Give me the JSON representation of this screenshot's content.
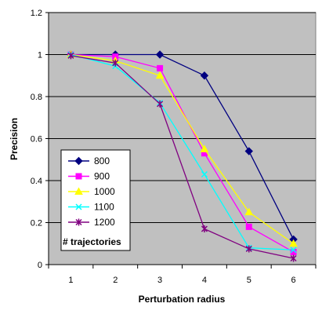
{
  "chart_data": {
    "type": "line",
    "xlabel": "Perturbation radius",
    "ylabel": "Precision",
    "x": [
      1,
      2,
      3,
      4,
      5,
      6
    ],
    "x_ticks": [
      "1",
      "2",
      "3",
      "4",
      "5",
      "6"
    ],
    "xlim": [
      0.5,
      6.5
    ],
    "ylim": [
      0,
      1.2
    ],
    "y_ticks": [
      "0",
      "0.2",
      "0.4",
      "0.6",
      "0.8",
      "1",
      "1.2"
    ],
    "grid": true,
    "plot_background": "#c0c0c0",
    "legend_title": "# trajectories",
    "legend_placement": "left",
    "series": [
      {
        "name": "800",
        "color": "#000080",
        "marker": "diamond",
        "values": [
          1.0,
          1.0,
          1.0,
          0.9,
          0.54,
          0.12
        ]
      },
      {
        "name": "900",
        "color": "#ff00ff",
        "marker": "square",
        "values": [
          1.0,
          0.99,
          0.935,
          0.53,
          0.18,
          0.06
        ]
      },
      {
        "name": "1000",
        "color": "#ffff00",
        "marker": "triangle",
        "values": [
          1.0,
          0.97,
          0.9,
          0.55,
          0.25,
          0.1
        ]
      },
      {
        "name": "1100",
        "color": "#00ffff",
        "marker": "x",
        "values": [
          1.0,
          0.945,
          0.77,
          0.43,
          0.08,
          0.07
        ]
      },
      {
        "name": "1200",
        "color": "#800080",
        "marker": "star",
        "values": [
          0.995,
          0.96,
          0.765,
          0.17,
          0.075,
          0.03
        ]
      }
    ]
  }
}
